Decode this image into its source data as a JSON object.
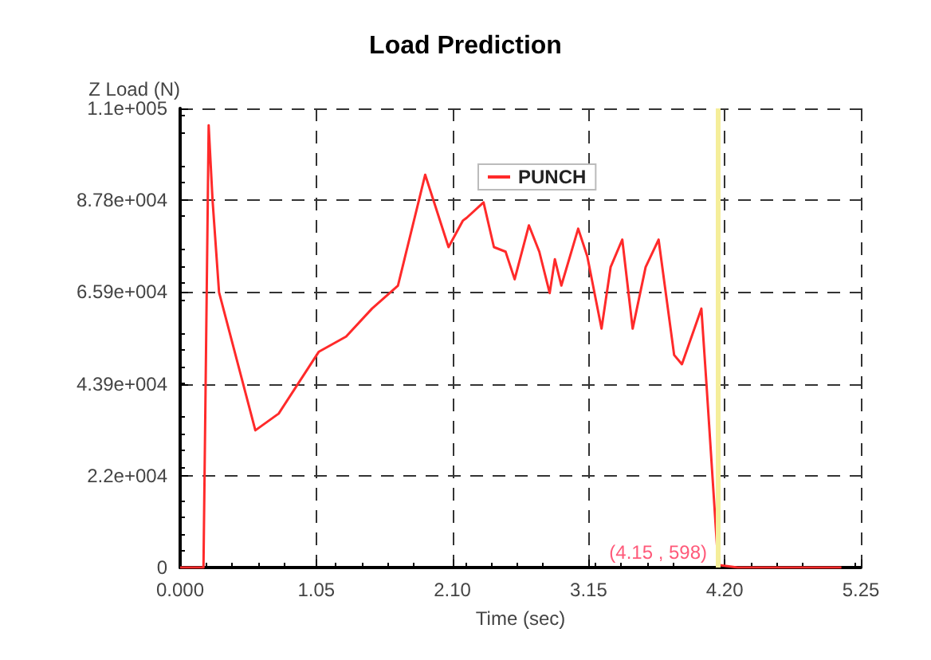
{
  "chart_data": {
    "type": "line",
    "title": "Load Prediction",
    "xlabel": "Time (sec)",
    "ylabel": "Z Load (N)",
    "x": [
      0,
      0.18,
      0.22,
      0.25,
      0.3,
      0.58,
      0.76,
      1.07,
      1.28,
      1.48,
      1.68,
      1.89,
      2.07,
      2.18,
      2.21,
      2.34,
      2.42,
      2.51,
      2.58,
      2.69,
      2.77,
      2.85,
      2.89,
      2.94,
      3.07,
      3.14,
      3.25,
      3.32,
      3.41,
      3.49,
      3.59,
      3.69,
      3.81,
      3.87,
      4.02,
      4.06,
      4.15,
      4.3,
      5.1
    ],
    "series": [
      {
        "name": "PUNCH",
        "color": "#ff2a2a",
        "values": [
          0,
          0,
          105700,
          87800,
          65800,
          32800,
          36800,
          51600,
          55200,
          61900,
          67400,
          93900,
          76600,
          82900,
          83600,
          87300,
          76600,
          75500,
          68900,
          81800,
          75500,
          65600,
          73700,
          67400,
          81000,
          74400,
          57100,
          71800,
          78400,
          57100,
          71800,
          78400,
          50800,
          48600,
          61900,
          43500,
          598,
          0,
          0
        ]
      }
    ],
    "xlim": [
      0,
      5.25
    ],
    "xticks": [
      {
        "value": 0,
        "label": "0.000"
      },
      1.05,
      {
        "value": 2.1,
        "label": "2.10"
      },
      3.15,
      {
        "value": 4.2,
        "label": "4.20"
      },
      5.25
    ],
    "ylim": [
      0,
      109750
    ],
    "yticks": [
      {
        "value": 0,
        "label": "0"
      },
      {
        "value": 21950,
        "label": "2.2e+004"
      },
      {
        "value": 43900,
        "label": "4.39e+004"
      },
      {
        "value": 65850,
        "label": "6.59e+004"
      },
      {
        "value": 87800,
        "label": "8.78e+004"
      },
      {
        "value": 109750,
        "label": "1.1e+005"
      }
    ],
    "ref_lines": [
      {
        "axis": "x",
        "value": 4.15,
        "color": "#f5ee9a"
      }
    ],
    "annotations": [
      {
        "text": "(4.15 , 598)",
        "x": 4.15,
        "y": 598
      }
    ],
    "grid": true,
    "legend": "top",
    "marker": "none",
    "line_style": "solid"
  }
}
